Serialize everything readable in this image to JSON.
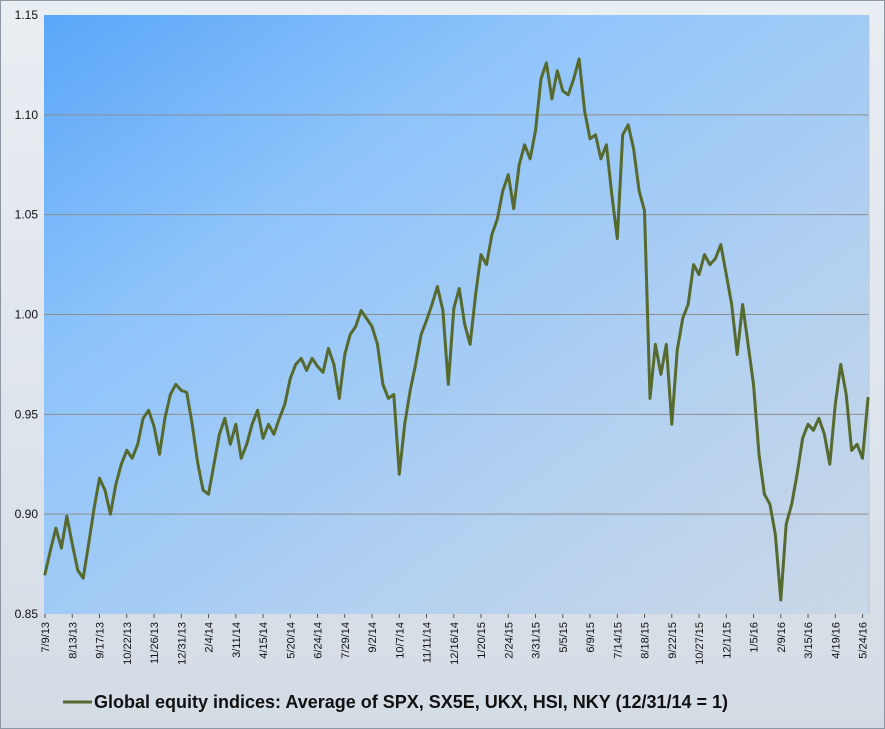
{
  "colors": {
    "series": "#56692e",
    "grid": "#8e8e8e",
    "plot_edge": "#b7c8d8"
  },
  "chart_data": {
    "type": "line",
    "title": "",
    "xlabel": "",
    "ylabel": "",
    "ylim": [
      0.85,
      1.15
    ],
    "grid": true,
    "legend_position": "bottom",
    "y_ticks": [
      "0.85",
      "0.90",
      "0.95",
      "1.00",
      "1.05",
      "1.10",
      "1.15"
    ],
    "x_ticks": [
      "7/9/13",
      "8/13/13",
      "9/17/13",
      "10/22/13",
      "11/26/13",
      "12/31/13",
      "2/4/14",
      "3/11/14",
      "4/15/14",
      "5/20/14",
      "6/24/14",
      "7/29/14",
      "9/2/14",
      "10/7/14",
      "11/11/14",
      "12/16/14",
      "1/20/15",
      "2/24/15",
      "3/31/15",
      "5/5/15",
      "6/9/15",
      "7/14/15",
      "8/18/15",
      "9/22/15",
      "10/27/15",
      "12/1/15",
      "1/5/16",
      "2/9/16",
      "3/15/16",
      "4/19/16",
      "5/24/16"
    ],
    "series": [
      {
        "name": "Global equity indices: Average of SPX, SX5E, UKX, HSI, NKY (12/31/14 = 1)",
        "x": [
          "7/9/13",
          "7/16/13",
          "7/23/13",
          "7/30/13",
          "8/6/13",
          "8/13/13",
          "8/20/13",
          "8/27/13",
          "9/3/13",
          "9/10/13",
          "9/17/13",
          "9/24/13",
          "10/1/13",
          "10/8/13",
          "10/15/13",
          "10/22/13",
          "10/29/13",
          "11/5/13",
          "11/12/13",
          "11/19/13",
          "11/26/13",
          "12/3/13",
          "12/10/13",
          "12/17/13",
          "12/24/13",
          "12/31/13",
          "1/7/14",
          "1/14/14",
          "1/21/14",
          "1/28/14",
          "2/4/14",
          "2/11/14",
          "2/18/14",
          "2/25/14",
          "3/4/14",
          "3/11/14",
          "3/18/14",
          "3/25/14",
          "4/1/14",
          "4/8/14",
          "4/15/14",
          "4/22/14",
          "4/29/14",
          "5/6/14",
          "5/13/14",
          "5/20/14",
          "5/27/14",
          "6/3/14",
          "6/10/14",
          "6/17/14",
          "6/24/14",
          "7/1/14",
          "7/8/14",
          "7/15/14",
          "7/22/14",
          "7/29/14",
          "8/5/14",
          "8/12/14",
          "8/19/14",
          "8/26/14",
          "9/2/14",
          "9/9/14",
          "9/16/14",
          "9/23/14",
          "9/30/14",
          "10/7/14",
          "10/14/14",
          "10/21/14",
          "10/28/14",
          "11/4/14",
          "11/11/14",
          "11/18/14",
          "11/25/14",
          "12/2/14",
          "12/9/14",
          "12/16/14",
          "12/23/14",
          "12/30/14",
          "1/6/15",
          "1/13/15",
          "1/20/15",
          "1/27/15",
          "2/3/15",
          "2/10/15",
          "2/17/15",
          "2/24/15",
          "3/3/15",
          "3/10/15",
          "3/17/15",
          "3/24/15",
          "3/31/15",
          "4/7/15",
          "4/14/15",
          "4/21/15",
          "4/28/15",
          "5/5/15",
          "5/12/15",
          "5/19/15",
          "5/26/15",
          "6/2/15",
          "6/9/15",
          "6/16/15",
          "6/23/15",
          "6/30/15",
          "7/7/15",
          "7/14/15",
          "7/21/15",
          "7/28/15",
          "8/4/15",
          "8/11/15",
          "8/18/15",
          "8/25/15",
          "9/1/15",
          "9/8/15",
          "9/15/15",
          "9/22/15",
          "9/29/15",
          "10/6/15",
          "10/13/15",
          "10/20/15",
          "10/27/15",
          "11/3/15",
          "11/10/15",
          "11/17/15",
          "11/24/15",
          "12/1/15",
          "12/8/15",
          "12/15/15",
          "12/22/15",
          "12/29/15",
          "1/5/16",
          "1/12/16",
          "1/19/16",
          "1/26/16",
          "2/2/16",
          "2/9/16",
          "2/16/16",
          "2/23/16",
          "3/1/16",
          "3/8/16",
          "3/15/16",
          "3/22/16",
          "3/29/16",
          "4/5/16",
          "4/12/16",
          "4/19/16",
          "4/26/16",
          "5/3/16",
          "5/10/16",
          "5/17/16",
          "5/24/16",
          "5/31/16"
        ],
        "values": [
          0.87,
          0.882,
          0.893,
          0.883,
          0.899,
          0.885,
          0.872,
          0.868,
          0.885,
          0.903,
          0.918,
          0.912,
          0.9,
          0.915,
          0.925,
          0.932,
          0.928,
          0.935,
          0.948,
          0.952,
          0.944,
          0.93,
          0.948,
          0.96,
          0.965,
          0.962,
          0.961,
          0.945,
          0.926,
          0.912,
          0.91,
          0.925,
          0.94,
          0.948,
          0.935,
          0.945,
          0.928,
          0.935,
          0.945,
          0.952,
          0.938,
          0.945,
          0.94,
          0.948,
          0.955,
          0.968,
          0.975,
          0.978,
          0.972,
          0.978,
          0.974,
          0.971,
          0.983,
          0.975,
          0.958,
          0.98,
          0.99,
          0.994,
          1.002,
          0.998,
          0.994,
          0.985,
          0.965,
          0.958,
          0.96,
          0.92,
          0.945,
          0.962,
          0.975,
          0.99,
          0.997,
          1.005,
          1.014,
          1.002,
          0.965,
          1.003,
          1.013,
          0.995,
          0.985,
          1.01,
          1.03,
          1.025,
          1.04,
          1.048,
          1.062,
          1.07,
          1.053,
          1.075,
          1.085,
          1.078,
          1.092,
          1.118,
          1.126,
          1.108,
          1.122,
          1.112,
          1.11,
          1.118,
          1.128,
          1.102,
          1.088,
          1.09,
          1.078,
          1.085,
          1.06,
          1.038,
          1.09,
          1.095,
          1.083,
          1.062,
          1.052,
          0.958,
          0.985,
          0.97,
          0.985,
          0.945,
          0.982,
          0.998,
          1.005,
          1.025,
          1.02,
          1.03,
          1.025,
          1.028,
          1.035,
          1.02,
          1.005,
          0.98,
          1.005,
          0.985,
          0.965,
          0.93,
          0.91,
          0.905,
          0.89,
          0.857,
          0.895,
          0.905,
          0.92,
          0.938,
          0.945,
          0.942,
          0.948,
          0.94,
          0.925,
          0.955,
          0.975,
          0.96,
          0.932,
          0.935,
          0.928,
          0.958
        ]
      }
    ]
  }
}
